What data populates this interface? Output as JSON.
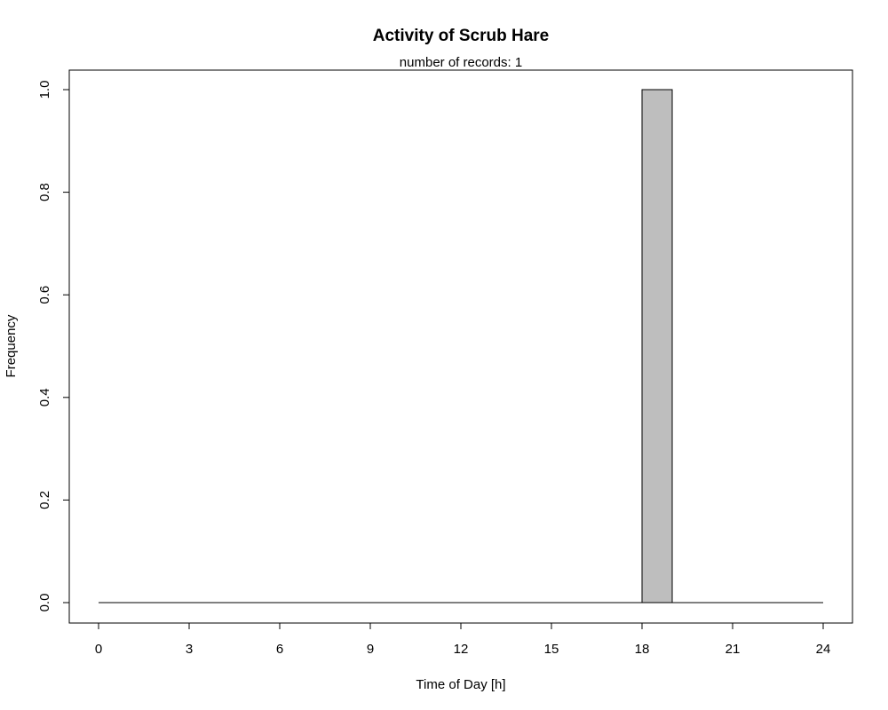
{
  "chart_data": {
    "type": "bar",
    "title": "Activity of Scrub Hare",
    "subtitle": "number of records: 1",
    "xlabel": "Time of Day [h]",
    "ylabel": "Frequency",
    "xlim": [
      0,
      24
    ],
    "ylim": [
      0,
      1
    ],
    "bin_width_h": 1,
    "x_ticks": [
      0,
      3,
      6,
      9,
      12,
      15,
      18,
      21,
      24
    ],
    "x_tick_labels": [
      "0",
      "3",
      "6",
      "9",
      "12",
      "15",
      "18",
      "21",
      "24"
    ],
    "y_ticks": [
      0,
      0.2,
      0.4,
      0.6,
      0.8,
      1
    ],
    "y_tick_labels": [
      "0.0",
      "0.2",
      "0.4",
      "0.6",
      "0.8",
      "1.0"
    ],
    "bin_starts": [
      0,
      1,
      2,
      3,
      4,
      5,
      6,
      7,
      8,
      9,
      10,
      11,
      12,
      13,
      14,
      15,
      16,
      17,
      18,
      19,
      20,
      21,
      22,
      23
    ],
    "values": [
      0,
      0,
      0,
      0,
      0,
      0,
      0,
      0,
      0,
      0,
      0,
      0,
      0,
      0,
      0,
      0,
      0,
      0,
      1,
      0,
      0,
      0,
      0,
      0
    ],
    "bar_color": "#bebebe",
    "border_color": "#000000",
    "grid": false,
    "legend": "none"
  }
}
